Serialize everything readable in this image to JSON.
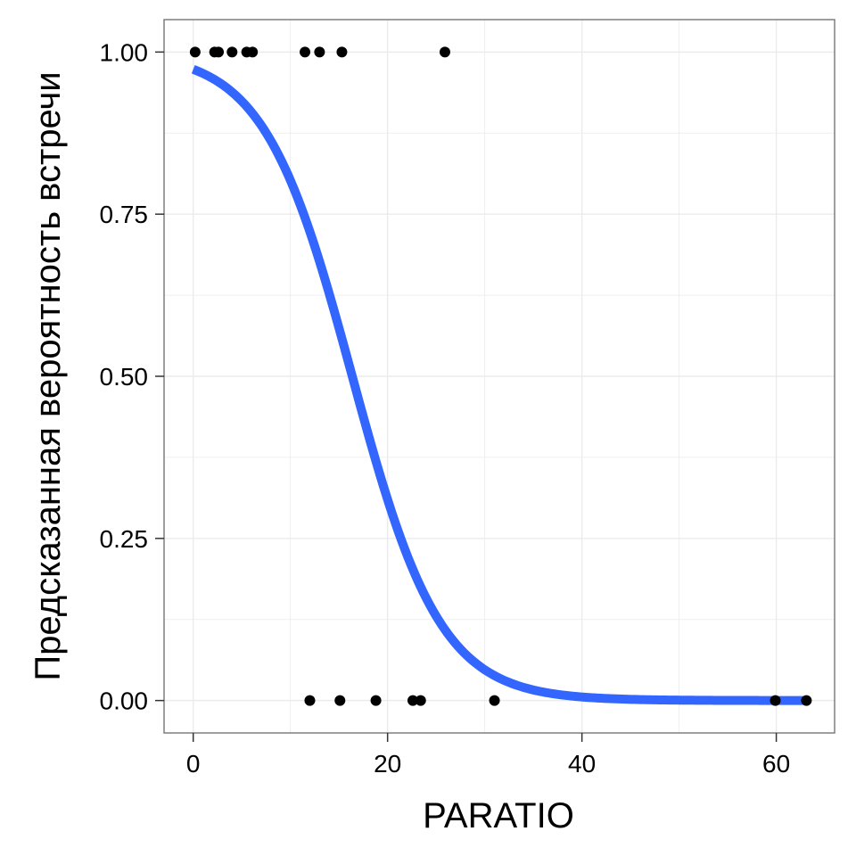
{
  "chart_data": {
    "type": "scatter",
    "xlabel": "PARATIO",
    "ylabel": "Предсказанная вероятность встречи",
    "xlim": [
      -3,
      66
    ],
    "ylim": [
      -0.05,
      1.05
    ],
    "x_ticks": [
      {
        "value": 0,
        "label": "0"
      },
      {
        "value": 20,
        "label": "20"
      },
      {
        "value": 40,
        "label": "40"
      },
      {
        "value": 60,
        "label": "60"
      }
    ],
    "y_ticks": [
      {
        "value": 0,
        "label": "0.00"
      },
      {
        "value": 0.25,
        "label": "0.25"
      },
      {
        "value": 0.5,
        "label": "0.50"
      },
      {
        "value": 0.75,
        "label": "0.75"
      },
      {
        "value": 1,
        "label": "1.00"
      }
    ],
    "grid": true,
    "points": [
      {
        "x": 0.2,
        "y": 1
      },
      {
        "x": 2.2,
        "y": 1
      },
      {
        "x": 2.6,
        "y": 1
      },
      {
        "x": 4.0,
        "y": 1
      },
      {
        "x": 5.5,
        "y": 1
      },
      {
        "x": 6.1,
        "y": 1
      },
      {
        "x": 11.5,
        "y": 1
      },
      {
        "x": 13.0,
        "y": 1
      },
      {
        "x": 15.3,
        "y": 1
      },
      {
        "x": 25.9,
        "y": 1
      },
      {
        "x": 12.0,
        "y": 0
      },
      {
        "x": 15.1,
        "y": 0
      },
      {
        "x": 18.8,
        "y": 0
      },
      {
        "x": 22.6,
        "y": 0
      },
      {
        "x": 23.4,
        "y": 0
      },
      {
        "x": 31.0,
        "y": 0
      },
      {
        "x": 59.9,
        "y": 0
      },
      {
        "x": 63.1,
        "y": 0
      }
    ],
    "fit_curve": {
      "type": "logistic",
      "intercept": 3.6,
      "slope": -0.22,
      "x_range": [
        0,
        63.1
      ],
      "color": "#3366ff"
    },
    "point_color": "#000000",
    "panel_border_color": "#7f7f7f",
    "grid_color": "#ebebeb"
  }
}
